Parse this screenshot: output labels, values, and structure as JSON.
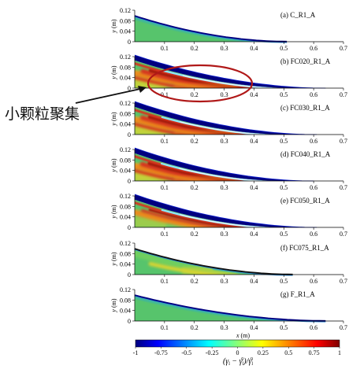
{
  "chart_data": {
    "type": "heatmap",
    "x_axis": {
      "label": "x (m)",
      "range": [
        0,
        0.7
      ],
      "ticks": [
        "0.1",
        "0.2",
        "0.3",
        "0.4",
        "0.5",
        "0.6",
        "0.7"
      ],
      "tick_values": [
        0.1,
        0.2,
        0.3,
        0.4,
        0.5,
        0.6,
        0.7
      ]
    },
    "y_axis": {
      "label": "y (m)",
      "range": [
        0,
        0.12
      ],
      "ticks": [
        "0",
        "0.04",
        "0.08",
        "0.12"
      ],
      "tick_values": [
        0,
        0.04,
        0.08,
        0.12
      ]
    },
    "panels": [
      {
        "label": "(a) C_R1_A",
        "front_x": 0.51,
        "regime": "uniform",
        "dark_top": false
      },
      {
        "label": "(b) FC020_R1_A",
        "front_x": 0.54,
        "regime": "strong-bands",
        "dark_top": true,
        "highlighted": true
      },
      {
        "label": "(c) FC030_R1_A",
        "front_x": 0.51,
        "regime": "strong-bands",
        "dark_top": true
      },
      {
        "label": "(d) FC040_R1_A",
        "front_x": 0.5,
        "regime": "strong-bands",
        "dark_top": true
      },
      {
        "label": "(e) FC050_R1_A",
        "front_x": 0.51,
        "regime": "moderate",
        "dark_top": true
      },
      {
        "label": "(f) FC075_R1_A",
        "front_x": 0.53,
        "regime": "weak",
        "dark_top": false
      },
      {
        "label": "(g) F_R1_A",
        "front_x": 0.64,
        "regime": "uniform",
        "dark_top": false
      }
    ],
    "colorbar": {
      "ticks": [
        "-1",
        "-0.75",
        "-0.5",
        "-0.25",
        "0",
        "0.25",
        "0.5",
        "0.75",
        "1"
      ],
      "tick_values": [
        -1,
        -0.75,
        -0.5,
        -0.25,
        0,
        0.25,
        0.5,
        0.75,
        1
      ],
      "range": [
        -1,
        1
      ],
      "label_parts": [
        "(γ",
        "l",
        " − γ",
        "l",
        "0",
        ")/γ",
        "l",
        "0"
      ]
    }
  },
  "annotation": {
    "text": "小颗粒聚集"
  },
  "colors": {
    "low": "#00007f",
    "high": "#7f0000",
    "highlight_ellipse": "#b01818"
  }
}
